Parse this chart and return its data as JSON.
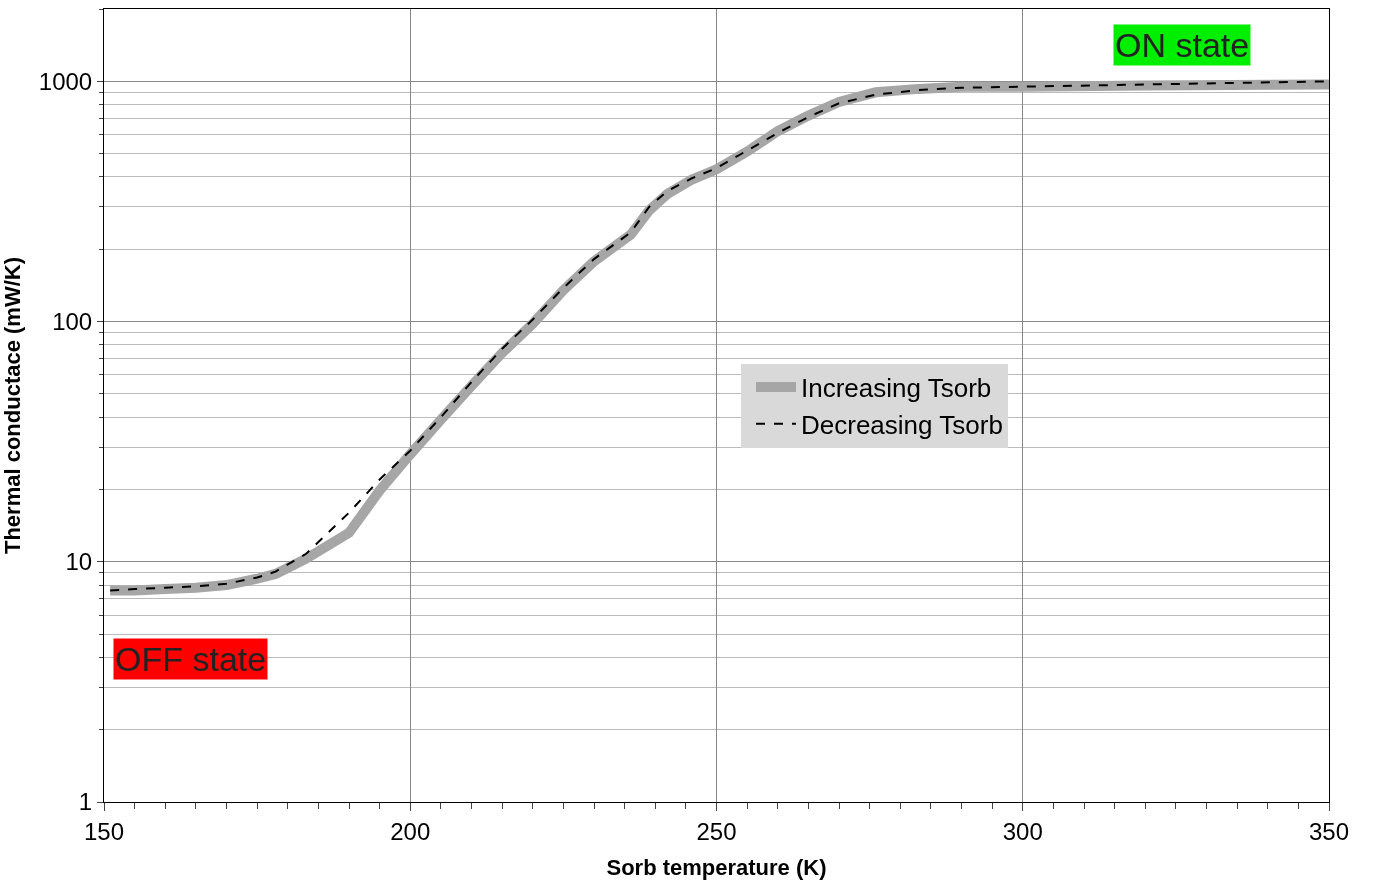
{
  "chart_data": {
    "type": "line",
    "xlabel": "Sorb temperature (K)",
    "ylabel": "Thermal conductace (mW/K)",
    "xlim": [
      150,
      350
    ],
    "xticks": [
      150,
      200,
      250,
      300,
      350
    ],
    "ylim": [
      1,
      2000
    ],
    "yticks": [
      1,
      10,
      100,
      1000
    ],
    "log": "y",
    "grid": true,
    "legend": "right",
    "marker": "none",
    "series": [
      {
        "name": "Increasing Tsorb",
        "color": "#a6a6a6",
        "line_style": "solid",
        "x": [
          151,
          155,
          160,
          165,
          170,
          175,
          178,
          183,
          190,
          195,
          200,
          205,
          210,
          215,
          220,
          225,
          230,
          236,
          239,
          242,
          246,
          250,
          255,
          260,
          265,
          270,
          276,
          283,
          290,
          300,
          320,
          350
        ],
        "values": [
          7.6,
          7.6,
          7.7,
          7.8,
          8.0,
          8.5,
          8.9,
          10.3,
          13.2,
          19.8,
          28,
          39,
          54,
          74,
          98,
          135,
          178,
          230,
          290,
          340,
          390,
          430,
          510,
          620,
          720,
          820,
          900,
          930,
          950,
          950,
          960,
          970
        ]
      },
      {
        "name": "Decreasing Tsorb",
        "color": "#000000",
        "line_style": "dashed",
        "x": [
          151,
          155,
          160,
          165,
          170,
          175,
          178,
          183,
          190,
          195,
          200,
          205,
          210,
          215,
          220,
          225,
          230,
          236,
          239,
          242,
          246,
          250,
          255,
          260,
          265,
          270,
          276,
          283,
          290,
          300,
          320,
          350
        ],
        "values": [
          7.6,
          7.7,
          7.8,
          7.9,
          8.1,
          8.6,
          9.1,
          10.8,
          16,
          22,
          29,
          40,
          56,
          77,
          102,
          138,
          182,
          235,
          300,
          350,
          395,
          435,
          515,
          610,
          710,
          810,
          880,
          920,
          940,
          950,
          970,
          1000
        ]
      }
    ],
    "annotations": [
      "OFF state",
      "ON state"
    ]
  }
}
